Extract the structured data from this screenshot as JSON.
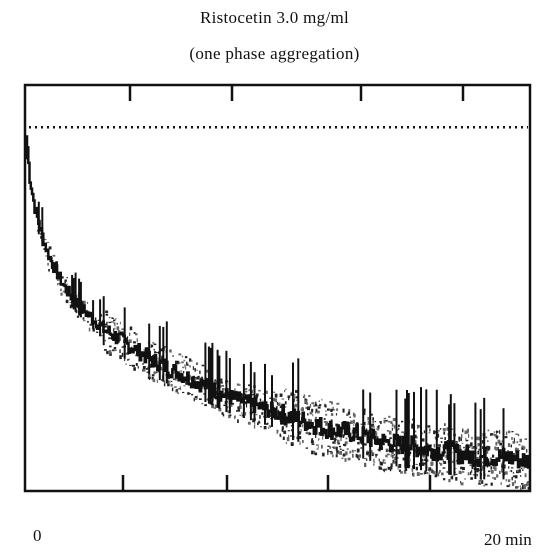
{
  "title": "Ristocetin 3.0 mg/ml",
  "subtitle": "(one phase aggregation)",
  "chart_data": {
    "type": "line",
    "title": "Ristocetin 3.0 mg/ml",
    "subtitle": "(one phase aggregation)",
    "x_unit": "min",
    "xlim": [
      0,
      20
    ],
    "ylim": [
      0,
      100
    ],
    "x_tick_labels": [
      "0",
      "20 min"
    ],
    "grid": false,
    "reference_line": {
      "style": "dotted",
      "y": 90
    },
    "series": [
      {
        "x": [
          0.0,
          0.1,
          0.3,
          0.5,
          0.8,
          1.0,
          1.5,
          2.0,
          2.5,
          3.0,
          3.5,
          4.0,
          5.0,
          6.0,
          7.0,
          8.0,
          9.0,
          10.0,
          11.0,
          12.0,
          13.0,
          14.0,
          15.0,
          16.0,
          17.0,
          18.0,
          19.0,
          20.0
        ],
        "y": [
          85,
          77,
          70,
          65,
          59,
          56,
          50,
          46,
          43,
          40,
          38,
          36,
          32,
          29,
          26,
          23,
          21,
          19,
          17,
          15,
          14,
          12,
          11,
          10,
          9,
          8,
          8,
          7
        ]
      }
    ]
  },
  "x_labels": {
    "min": "0",
    "max": "20 min"
  }
}
